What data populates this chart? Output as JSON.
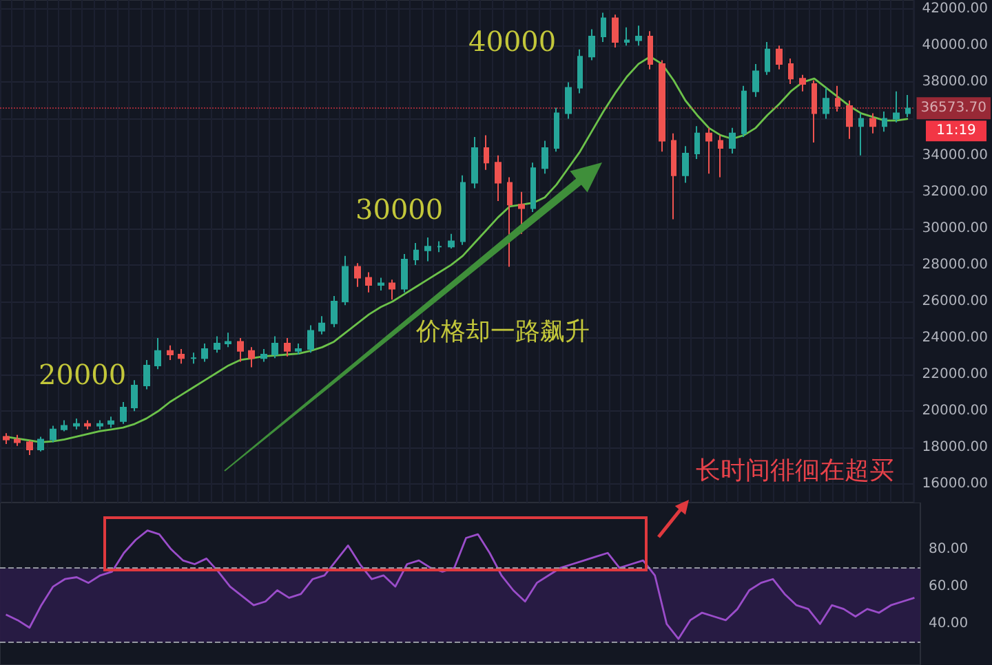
{
  "chart_data": [
    {
      "type": "candlestick",
      "categories": [
        null,
        null,
        null,
        null,
        null,
        null,
        null,
        null,
        null,
        null,
        null,
        null,
        null,
        null,
        null,
        null,
        null,
        null,
        null,
        null,
        null,
        null,
        null,
        null,
        null,
        null,
        null,
        null,
        null,
        null,
        null,
        null,
        null,
        null,
        null,
        null,
        null,
        null,
        null,
        null,
        null,
        null,
        null,
        null,
        null,
        null,
        null,
        null,
        null,
        null,
        null,
        null,
        null,
        null,
        null,
        null,
        null,
        null,
        null,
        null,
        null,
        null,
        null,
        null,
        null,
        null,
        null,
        null,
        null,
        null,
        null,
        null,
        null,
        null,
        null,
        null,
        null,
        null
      ],
      "ohlc": [
        [
          18600,
          18800,
          18200,
          18450
        ],
        [
          18450,
          18700,
          18100,
          18300
        ],
        [
          18300,
          18400,
          17600,
          17900
        ],
        [
          17900,
          18600,
          17800,
          18450
        ],
        [
          18450,
          19200,
          18300,
          19000
        ],
        [
          19000,
          19500,
          18900,
          19200
        ],
        [
          19200,
          19600,
          19000,
          19300
        ],
        [
          19300,
          19500,
          19000,
          19200
        ],
        [
          19200,
          19500,
          19000,
          19300
        ],
        [
          19300,
          19700,
          19100,
          19450
        ],
        [
          19450,
          20500,
          19300,
          20200
        ],
        [
          20200,
          21700,
          20000,
          21400
        ],
        [
          21400,
          22800,
          21200,
          22500
        ],
        [
          22500,
          24000,
          22300,
          23300
        ],
        [
          23300,
          23600,
          22800,
          23100
        ],
        [
          23100,
          23400,
          22600,
          22900
        ],
        [
          22900,
          23200,
          22600,
          22900
        ],
        [
          22900,
          23700,
          22700,
          23400
        ],
        [
          23400,
          24100,
          23200,
          23700
        ],
        [
          23700,
          24300,
          23500,
          23800
        ],
        [
          23800,
          24000,
          22700,
          23300
        ],
        [
          23300,
          23500,
          22400,
          22900
        ],
        [
          22900,
          23400,
          22700,
          23100
        ],
        [
          23100,
          24100,
          22900,
          23700
        ],
        [
          23700,
          24000,
          23000,
          23300
        ],
        [
          23300,
          23700,
          23100,
          23400
        ],
        [
          23400,
          24700,
          23200,
          24400
        ],
        [
          24400,
          25200,
          24200,
          24800
        ],
        [
          24800,
          26300,
          24600,
          26000
        ],
        [
          26000,
          28500,
          25800,
          27900
        ],
        [
          27900,
          28100,
          26800,
          27300
        ],
        [
          27300,
          27600,
          26500,
          26900
        ],
        [
          26900,
          27300,
          26600,
          27000
        ],
        [
          27000,
          27200,
          26100,
          26700
        ],
        [
          26700,
          28600,
          26500,
          28300
        ],
        [
          28300,
          29200,
          28000,
          28800
        ],
        [
          28800,
          29500,
          28200,
          29000
        ],
        [
          29000,
          29300,
          28700,
          29000
        ],
        [
          29000,
          29700,
          28900,
          29300
        ],
        [
          29300,
          32900,
          29100,
          32500
        ],
        [
          32500,
          35000,
          32200,
          34400
        ],
        [
          34400,
          35100,
          33200,
          33600
        ],
        [
          33600,
          34000,
          31500,
          32500
        ],
        [
          32500,
          32800,
          27900,
          31300
        ],
        [
          31300,
          32000,
          29700,
          31100
        ],
        [
          31100,
          33600,
          30900,
          33300
        ],
        [
          33300,
          34800,
          33000,
          34400
        ],
        [
          34400,
          36600,
          34200,
          36300
        ],
        [
          36300,
          38000,
          36000,
          37700
        ],
        [
          37700,
          39800,
          37400,
          39400
        ],
        [
          39400,
          40900,
          39200,
          40500
        ],
        [
          40500,
          41800,
          40200,
          41500
        ],
        [
          41500,
          41700,
          39900,
          40200
        ],
        [
          40200,
          41000,
          40000,
          40300
        ],
        [
          40300,
          41100,
          40000,
          40500
        ],
        [
          40500,
          40800,
          38700,
          39000
        ],
        [
          39000,
          39200,
          34200,
          34800
        ],
        [
          34800,
          35200,
          30500,
          32900
        ],
        [
          32900,
          34500,
          32500,
          34100
        ],
        [
          34100,
          35600,
          33800,
          35200
        ],
        [
          35200,
          35500,
          33000,
          34800
        ],
        [
          34800,
          35100,
          32800,
          34400
        ],
        [
          34400,
          35500,
          34100,
          35200
        ],
        [
          35200,
          37800,
          35000,
          37500
        ],
        [
          37500,
          39000,
          37200,
          38600
        ],
        [
          38600,
          40200,
          38400,
          39800
        ],
        [
          39800,
          40000,
          38700,
          39000
        ],
        [
          39000,
          39300,
          37900,
          38200
        ],
        [
          38200,
          38400,
          37500,
          37900
        ],
        [
          37900,
          38100,
          34700,
          36300
        ],
        [
          36300,
          37700,
          36000,
          37100
        ],
        [
          37100,
          37800,
          36400,
          36700
        ],
        [
          36700,
          37000,
          34900,
          35600
        ],
        [
          35600,
          36300,
          34000,
          36000
        ],
        [
          36000,
          36300,
          35200,
          35600
        ],
        [
          35600,
          36400,
          35300,
          36000
        ],
        [
          36000,
          37500,
          35800,
          36300
        ],
        [
          36300,
          37300,
          36100,
          36570
        ]
      ],
      "series": [
        {
          "type": "line",
          "color": "#6cc24a",
          "values": [
            18600,
            18500,
            18400,
            18300,
            18350,
            18450,
            18600,
            18750,
            18900,
            19000,
            19100,
            19300,
            19600,
            20000,
            20500,
            20900,
            21300,
            21700,
            22100,
            22500,
            22800,
            22900,
            23000,
            23050,
            23100,
            23150,
            23300,
            23500,
            23800,
            24300,
            24800,
            25300,
            25700,
            26000,
            26400,
            26800,
            27200,
            27600,
            28000,
            28500,
            29200,
            29900,
            30600,
            31200,
            31300,
            31400,
            31700,
            32400,
            33300,
            34200,
            35300,
            36400,
            37400,
            38300,
            39000,
            39400,
            39000,
            38100,
            37000,
            36200,
            35500,
            35100,
            34900,
            35100,
            35500,
            36200,
            36800,
            37500,
            38000,
            38200,
            37700,
            37200,
            36700,
            36300,
            36100,
            35900,
            35900,
            36000
          ]
        }
      ],
      "ylim": [
        15000,
        42500
      ],
      "yticks": [
        {
          "value": 16000,
          "label": "16000.00"
        },
        {
          "value": 18000,
          "label": "18000.00"
        },
        {
          "value": 20000,
          "label": "20000.00"
        },
        {
          "value": 22000,
          "label": "22000.00"
        },
        {
          "value": 24000,
          "label": "24000.00"
        },
        {
          "value": 26000,
          "label": "26000.00"
        },
        {
          "value": 28000,
          "label": "28000.00"
        },
        {
          "value": 30000,
          "label": "30000.00"
        },
        {
          "value": 32000,
          "label": "32000.00"
        },
        {
          "value": 34000,
          "label": "34000.00"
        },
        {
          "value": 36000,
          "label": null
        },
        {
          "value": 38000,
          "label": "38000.00"
        },
        {
          "value": 40000,
          "label": "40000.00"
        },
        {
          "value": 42000,
          "label": "42000.00"
        }
      ],
      "ref_lines": [
        {
          "axis": "y",
          "value": 36573.7,
          "label": "36573.70",
          "color": "#f23645"
        }
      ],
      "annotations": [
        "20000",
        "30000",
        "40000",
        "价格却一路飙升",
        "长时间徘徊在超买",
        "11:19"
      ],
      "grid": true,
      "tick_labels": "y"
    },
    {
      "type": "line",
      "categories": [
        null,
        null,
        null,
        null,
        null,
        null,
        null,
        null,
        null,
        null,
        null,
        null,
        null,
        null,
        null,
        null,
        null,
        null,
        null,
        null,
        null,
        null,
        null,
        null,
        null,
        null,
        null,
        null,
        null,
        null,
        null,
        null,
        null,
        null,
        null,
        null,
        null,
        null,
        null,
        null,
        null,
        null,
        null,
        null,
        null,
        null,
        null,
        null,
        null,
        null,
        null,
        null,
        null,
        null,
        null,
        null,
        null,
        null,
        null,
        null,
        null,
        null,
        null,
        null,
        null,
        null,
        null,
        null,
        null,
        null,
        null,
        null,
        null,
        null,
        null,
        null,
        null,
        null
      ],
      "series": [
        {
          "color": "#9b4dca",
          "values": [
            45,
            42,
            38,
            50,
            60,
            64,
            65,
            62,
            66,
            68,
            78,
            85,
            90,
            88,
            80,
            74,
            72,
            75,
            68,
            60,
            55,
            50,
            52,
            58,
            54,
            56,
            64,
            66,
            74,
            82,
            72,
            64,
            66,
            60,
            72,
            74,
            70,
            68,
            70,
            86,
            88,
            78,
            66,
            58,
            52,
            62,
            66,
            70,
            72,
            74,
            76,
            78,
            70,
            72,
            74,
            66,
            40,
            32,
            42,
            46,
            44,
            42,
            48,
            58,
            62,
            64,
            56,
            50,
            48,
            40,
            50,
            48,
            44,
            48,
            46,
            50,
            52,
            54
          ]
        }
      ],
      "ylim": [
        18,
        105
      ],
      "yticks": [
        {
          "value": 40,
          "label": "40.00"
        },
        {
          "value": 60,
          "label": "60.00"
        },
        {
          "value": 80,
          "label": "80.00"
        }
      ],
      "bands": [
        {
          "axis": "y",
          "from": 30,
          "to": 70,
          "color": "#2a1c47"
        }
      ],
      "ref_lines": [
        {
          "axis": "y",
          "value": 70,
          "color": "#9598a1",
          "line_style": "dashed"
        },
        {
          "axis": "y",
          "value": 30,
          "color": "#9598a1",
          "line_style": "dashed"
        }
      ],
      "tick_labels": "y"
    }
  ]
}
